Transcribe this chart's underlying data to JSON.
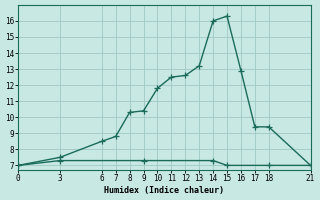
{
  "upper_x": [
    0,
    3,
    6,
    7,
    8,
    9,
    10,
    11,
    12,
    13,
    14,
    15,
    16,
    17,
    18,
    21
  ],
  "upper_y": [
    7,
    7.5,
    8.5,
    8.8,
    10.3,
    10.4,
    11.8,
    12.5,
    12.6,
    13.2,
    16.0,
    16.3,
    12.9,
    9.4,
    9.4,
    7.0
  ],
  "lower_x": [
    0,
    3,
    9,
    14,
    15,
    18,
    21
  ],
  "lower_y": [
    7.0,
    7.3,
    7.3,
    7.3,
    7.0,
    7.0,
    7.0
  ],
  "line_color": "#1a6b5a",
  "bg_color": "#c8e8e4",
  "grid_color": "#a0c8c4",
  "xlabel": "Humidex (Indice chaleur)",
  "xticks": [
    0,
    3,
    6,
    7,
    8,
    9,
    10,
    11,
    12,
    13,
    14,
    15,
    16,
    17,
    18,
    21
  ],
  "yticks": [
    7,
    8,
    9,
    10,
    11,
    12,
    13,
    14,
    15,
    16
  ],
  "ylim": [
    6.7,
    17.0
  ],
  "xlim": [
    0,
    21
  ],
  "marker": "+",
  "marker_size": 4,
  "linewidth": 1.0
}
